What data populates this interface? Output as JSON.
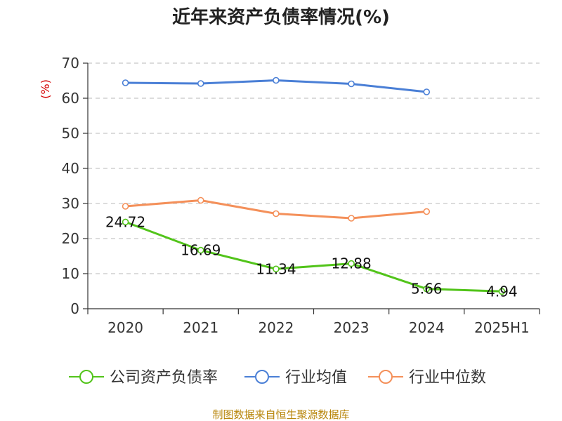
{
  "chart_data": {
    "type": "line",
    "title": "近年来资产负债率情况(%)",
    "ylabel_unit": "(%)",
    "categories": [
      "2020",
      "2021",
      "2022",
      "2023",
      "2024",
      "2025H1"
    ],
    "ylim": [
      0,
      70
    ],
    "yticks": [
      0,
      10,
      20,
      30,
      40,
      50,
      60,
      70
    ],
    "grid": true,
    "legend_position": "bottom",
    "series": [
      {
        "name": "公司资产负债率",
        "color": "#52c41a",
        "values": [
          24.72,
          16.69,
          11.34,
          12.88,
          5.66,
          4.94
        ],
        "labels": [
          "24.72",
          "16.69",
          "11.34",
          "12.88",
          "5.66",
          "4.94"
        ]
      },
      {
        "name": "行业均值",
        "color": "#4a7fd6",
        "values": [
          64.4,
          64.2,
          65.1,
          64.1,
          61.8,
          null
        ]
      },
      {
        "name": "行业中位数",
        "color": "#f4905a",
        "values": [
          29.2,
          30.9,
          27.1,
          25.8,
          27.7,
          null
        ]
      }
    ]
  },
  "source_text": "制图数据来自恒生聚源数据库"
}
